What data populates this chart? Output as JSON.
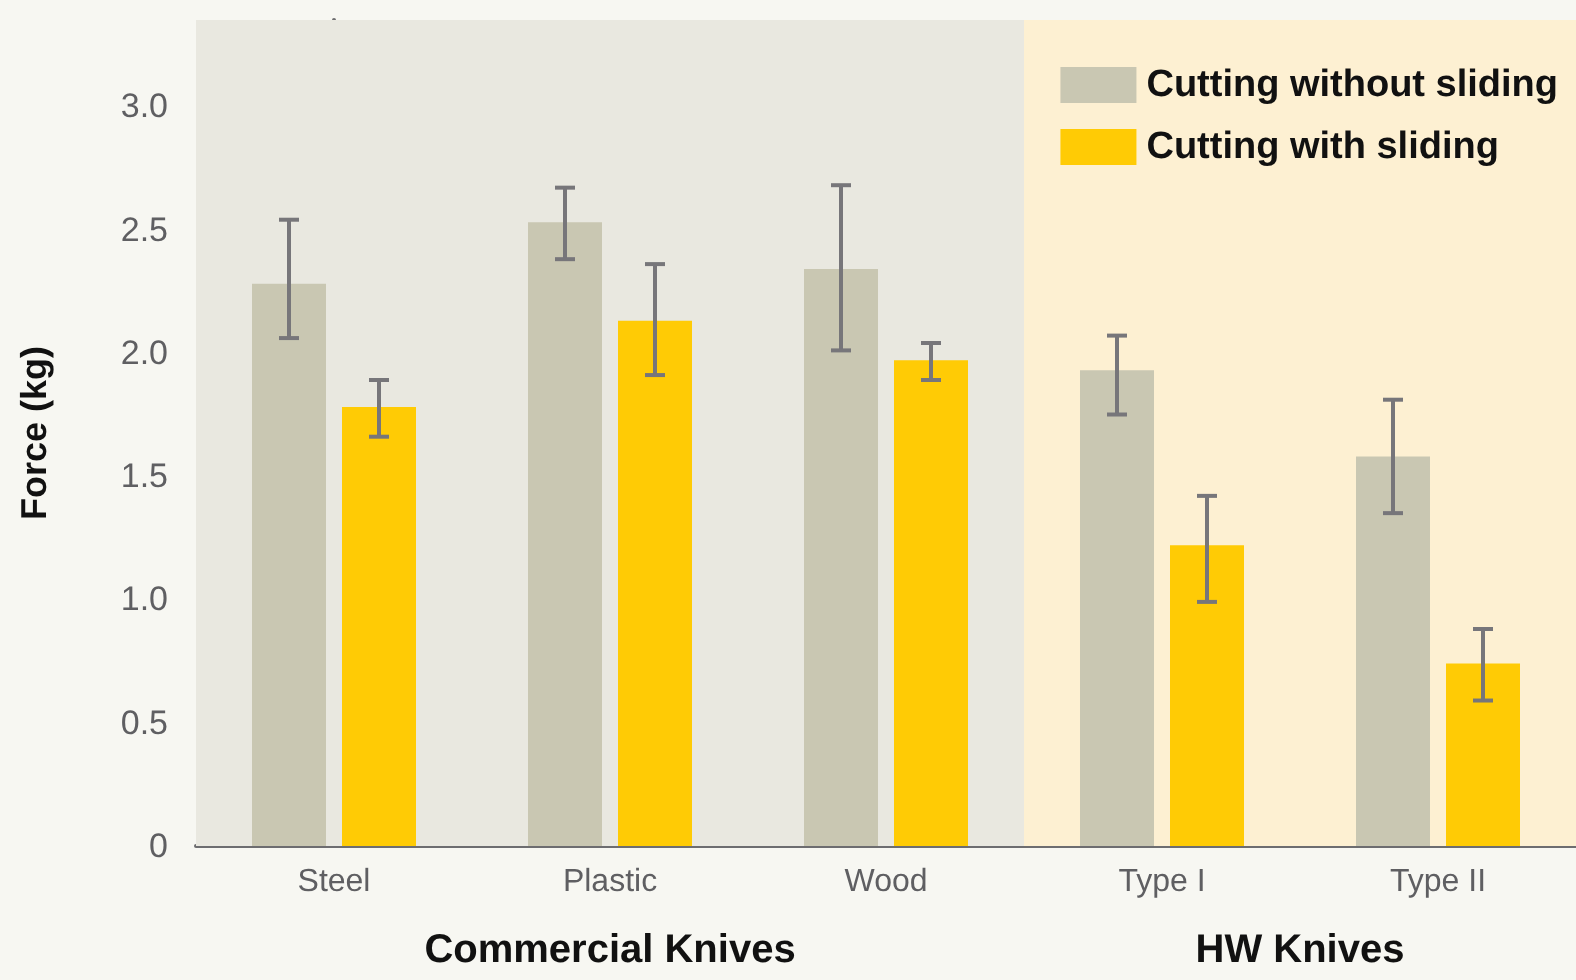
{
  "chart_data": {
    "type": "bar",
    "ylabel": "Force (kg)",
    "categories": [
      "Steel",
      "Plastic",
      "Wood",
      "Type I",
      "Type II"
    ],
    "series": [
      {
        "name": "Cutting without sliding",
        "color": "#c9c7b2",
        "values": [
          2.28,
          2.53,
          2.34,
          1.93,
          1.58
        ],
        "errors": [
          [
            2.06,
            2.54
          ],
          [
            2.38,
            2.67
          ],
          [
            2.01,
            2.68
          ],
          [
            1.75,
            2.07
          ],
          [
            1.35,
            1.81
          ]
        ]
      },
      {
        "name": "Cutting with sliding",
        "color": "#ffcb05",
        "values": [
          1.78,
          2.13,
          1.97,
          1.22,
          0.74
        ],
        "errors": [
          [
            1.66,
            1.89
          ],
          [
            1.91,
            2.36
          ],
          [
            1.89,
            2.04
          ],
          [
            0.99,
            1.42
          ],
          [
            0.59,
            0.88
          ]
        ]
      }
    ],
    "ylim": [
      0,
      3.35
    ],
    "yticks": [
      0,
      0.5,
      {
        "value": 1,
        "label": "1.0"
      },
      1.5,
      {
        "value": 2,
        "label": "2.0"
      },
      2.5,
      {
        "value": 3,
        "label": "3.0"
      }
    ],
    "bands": [
      {
        "axis": "x",
        "from": "Steel",
        "to": "Wood",
        "label": "Commercial Knives",
        "color": "#e9e8e0"
      },
      {
        "axis": "x",
        "from": "Type I",
        "to": "Type II",
        "label": "HW Knives",
        "color": "#fdf0d2"
      }
    ],
    "legend": "top right"
  }
}
